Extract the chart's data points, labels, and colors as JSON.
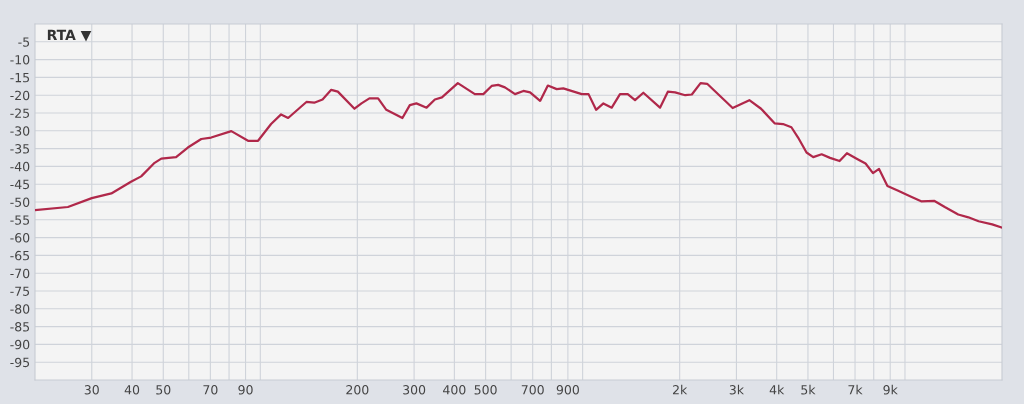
{
  "chart_data": {
    "type": "line",
    "title": "RTA ▼",
    "x": [
      20,
      25.3,
      30,
      34.5,
      39.7,
      42.7,
      47,
      49.3,
      54.8,
      59.6,
      65.6,
      70.4,
      81.3,
      91.6,
      98.4,
      108,
      116,
      122,
      139,
      147,
      156,
      166,
      174,
      196,
      206,
      218,
      232,
      246,
      276,
      291,
      305,
      328,
      348,
      366,
      410,
      463,
      492,
      522,
      547,
      574,
      617,
      655,
      687,
      738,
      780,
      831,
      871,
      994,
      1043,
      1101,
      1160,
      1231,
      1306,
      1380,
      1454,
      1543,
      1738,
      1838,
      1936,
      2081,
      2182,
      2322,
      2434,
      2920,
      3290,
      3577,
      3940,
      4184,
      4443,
      4660,
      4950,
      5193,
      5514,
      5855,
      6268,
      6607,
      7105,
      7546,
      7957,
      8310,
      8823,
      9490,
      10450,
      11225,
      12350,
      13290,
      14630,
      15730,
      16920,
      18650,
      20000
    ],
    "series": [
      {
        "color": "#b0284a",
        "values": [
          -52.3,
          -51.4,
          -48.9,
          -47.6,
          -44.3,
          -42.8,
          -39.0,
          -37.8,
          -37.4,
          -34.7,
          -32.3,
          -31.9,
          -30.1,
          -32.8,
          -32.8,
          -28.1,
          -25.4,
          -26.4,
          -21.9,
          -22.1,
          -21.2,
          -18.5,
          -19.0,
          -23.8,
          -22.3,
          -20.9,
          -20.9,
          -24.1,
          -26.4,
          -22.8,
          -22.3,
          -23.5,
          -21.2,
          -20.6,
          -16.6,
          -19.7,
          -19.7,
          -17.4,
          -17.1,
          -17.8,
          -19.7,
          -18.8,
          -19.2,
          -21.6,
          -17.3,
          -18.3,
          -18.1,
          -19.7,
          -19.7,
          -24.1,
          -22.3,
          -23.5,
          -19.7,
          -19.7,
          -21.4,
          -19.3,
          -23.5,
          -19.0,
          -19.2,
          -20.0,
          -19.8,
          -16.6,
          -16.8,
          -23.6,
          -21.4,
          -23.8,
          -27.9,
          -28.1,
          -29.0,
          -31.9,
          -36.1,
          -37.4,
          -36.6,
          -37.6,
          -38.5,
          -36.3,
          -37.9,
          -39.2,
          -41.9,
          -40.7,
          -45.5,
          -46.8,
          -48.5,
          -49.8,
          -49.7,
          -51.4,
          -53.5,
          -54.3,
          -55.4,
          -56.3,
          -57.2
        ]
      }
    ],
    "log": "x",
    "xlim": [
      20,
      20000
    ],
    "xticks": [
      30,
      40,
      50,
      {
        "value": 60,
        "label": null
      },
      70,
      {
        "value": 80,
        "label": null
      },
      90,
      {
        "value": 100,
        "label": null
      },
      200,
      300,
      400,
      500,
      {
        "value": 600,
        "label": null
      },
      700,
      {
        "value": 800,
        "label": null
      },
      900,
      {
        "value": 1000,
        "label": null
      },
      {
        "value": 2000,
        "label": "2k"
      },
      {
        "value": 3000,
        "label": "3k"
      },
      {
        "value": 4000,
        "label": "4k"
      },
      {
        "value": 5000,
        "label": "5k"
      },
      {
        "value": 6000,
        "label": null
      },
      {
        "value": 7000,
        "label": "7k"
      },
      {
        "value": 8000,
        "label": null
      },
      {
        "value": 9000,
        "label": "9k"
      },
      {
        "value": 10000,
        "label": null
      }
    ],
    "ylim": [
      -100,
      0
    ],
    "yticks": [
      -5,
      -10,
      -15,
      -20,
      -25,
      -30,
      -35,
      -40,
      -45,
      -50,
      -55,
      -60,
      -65,
      -70,
      -75,
      -80,
      -85,
      -90,
      -95
    ],
    "grid": true,
    "legend": false,
    "marker": "none",
    "line_style": "solid"
  }
}
